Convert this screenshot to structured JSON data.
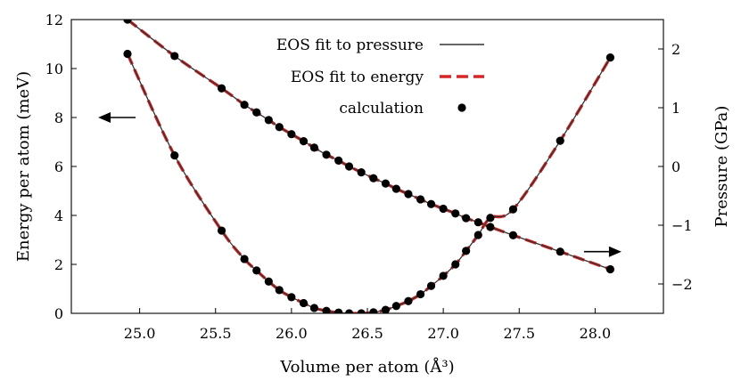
{
  "chart_data": {
    "type": "line",
    "xlabel": "Volume per atom (Å³)",
    "ylabel_left": "Energy per atom (meV)",
    "ylabel_right": "Pressure (GPa)",
    "xlim": [
      24.55,
      28.45
    ],
    "ylim_left": [
      0,
      12
    ],
    "ylim_right": [
      -2.5,
      2.5
    ],
    "x_ticks": [
      25.0,
      25.5,
      26.0,
      26.5,
      27.0,
      27.5,
      28.0
    ],
    "x_tick_labels": [
      "25.0",
      "25.5",
      "26.0",
      "26.5",
      "27.0",
      "27.5",
      "28.0"
    ],
    "y_left_ticks": [
      0,
      2,
      4,
      6,
      8,
      10,
      12
    ],
    "y_left_tick_labels": [
      "0",
      "2",
      "4",
      "6",
      "8",
      "10",
      "12"
    ],
    "y_right_ticks": [
      -2,
      -1,
      0,
      1,
      2
    ],
    "y_right_tick_labels": [
      "−2",
      "−1",
      "0",
      "1",
      "2"
    ],
    "grid": false,
    "legend_position": "top-center",
    "legend": [
      {
        "label": "EOS fit to pressure",
        "style": "solid",
        "color": "#333333"
      },
      {
        "label": "EOS fit to energy",
        "style": "dashed",
        "color": "#d62728"
      },
      {
        "label": "calculation",
        "style": "marker",
        "color": "#000000"
      }
    ],
    "annotations": [
      {
        "type": "arrow",
        "direction": "left",
        "axis": "left",
        "x": 24.85,
        "y": 8.0
      },
      {
        "type": "arrow",
        "direction": "right",
        "axis": "right",
        "x": 28.05,
        "y": -1.45
      }
    ],
    "series": [
      {
        "name": "calculation",
        "axis": "left",
        "x": [
          24.92,
          25.23,
          25.54,
          25.69,
          25.77,
          25.85,
          25.92,
          26.0,
          26.08,
          26.15,
          26.23,
          26.31,
          26.38,
          26.46,
          26.54,
          26.62,
          26.69,
          26.77,
          26.85,
          26.92,
          27.0,
          27.08,
          27.15,
          27.23,
          27.31,
          27.46,
          27.77,
          28.1
        ],
        "y": [
          10.6,
          6.45,
          3.38,
          2.22,
          1.75,
          1.3,
          0.95,
          0.66,
          0.42,
          0.22,
          0.1,
          0.03,
          0.0,
          0.0,
          0.04,
          0.14,
          0.3,
          0.5,
          0.78,
          1.12,
          1.53,
          2.0,
          2.55,
          3.2,
          3.9,
          4.25,
          7.05,
          10.45
        ]
      },
      {
        "name": "calculation",
        "axis": "right",
        "x": [
          24.92,
          25.23,
          25.54,
          25.69,
          25.77,
          25.85,
          25.92,
          26.0,
          26.08,
          26.15,
          26.23,
          26.31,
          26.38,
          26.46,
          26.54,
          26.62,
          26.69,
          26.77,
          26.85,
          26.92,
          27.0,
          27.08,
          27.15,
          27.23,
          27.31,
          27.46,
          27.77,
          28.1
        ],
        "y": [
          2.5,
          1.88,
          1.33,
          1.05,
          0.92,
          0.79,
          0.67,
          0.55,
          0.43,
          0.32,
          0.2,
          0.1,
          0.0,
          -0.1,
          -0.2,
          -0.29,
          -0.38,
          -0.47,
          -0.56,
          -0.64,
          -0.72,
          -0.8,
          -0.88,
          -0.95,
          -1.03,
          -1.17,
          -1.45,
          -1.75
        ]
      }
    ]
  }
}
